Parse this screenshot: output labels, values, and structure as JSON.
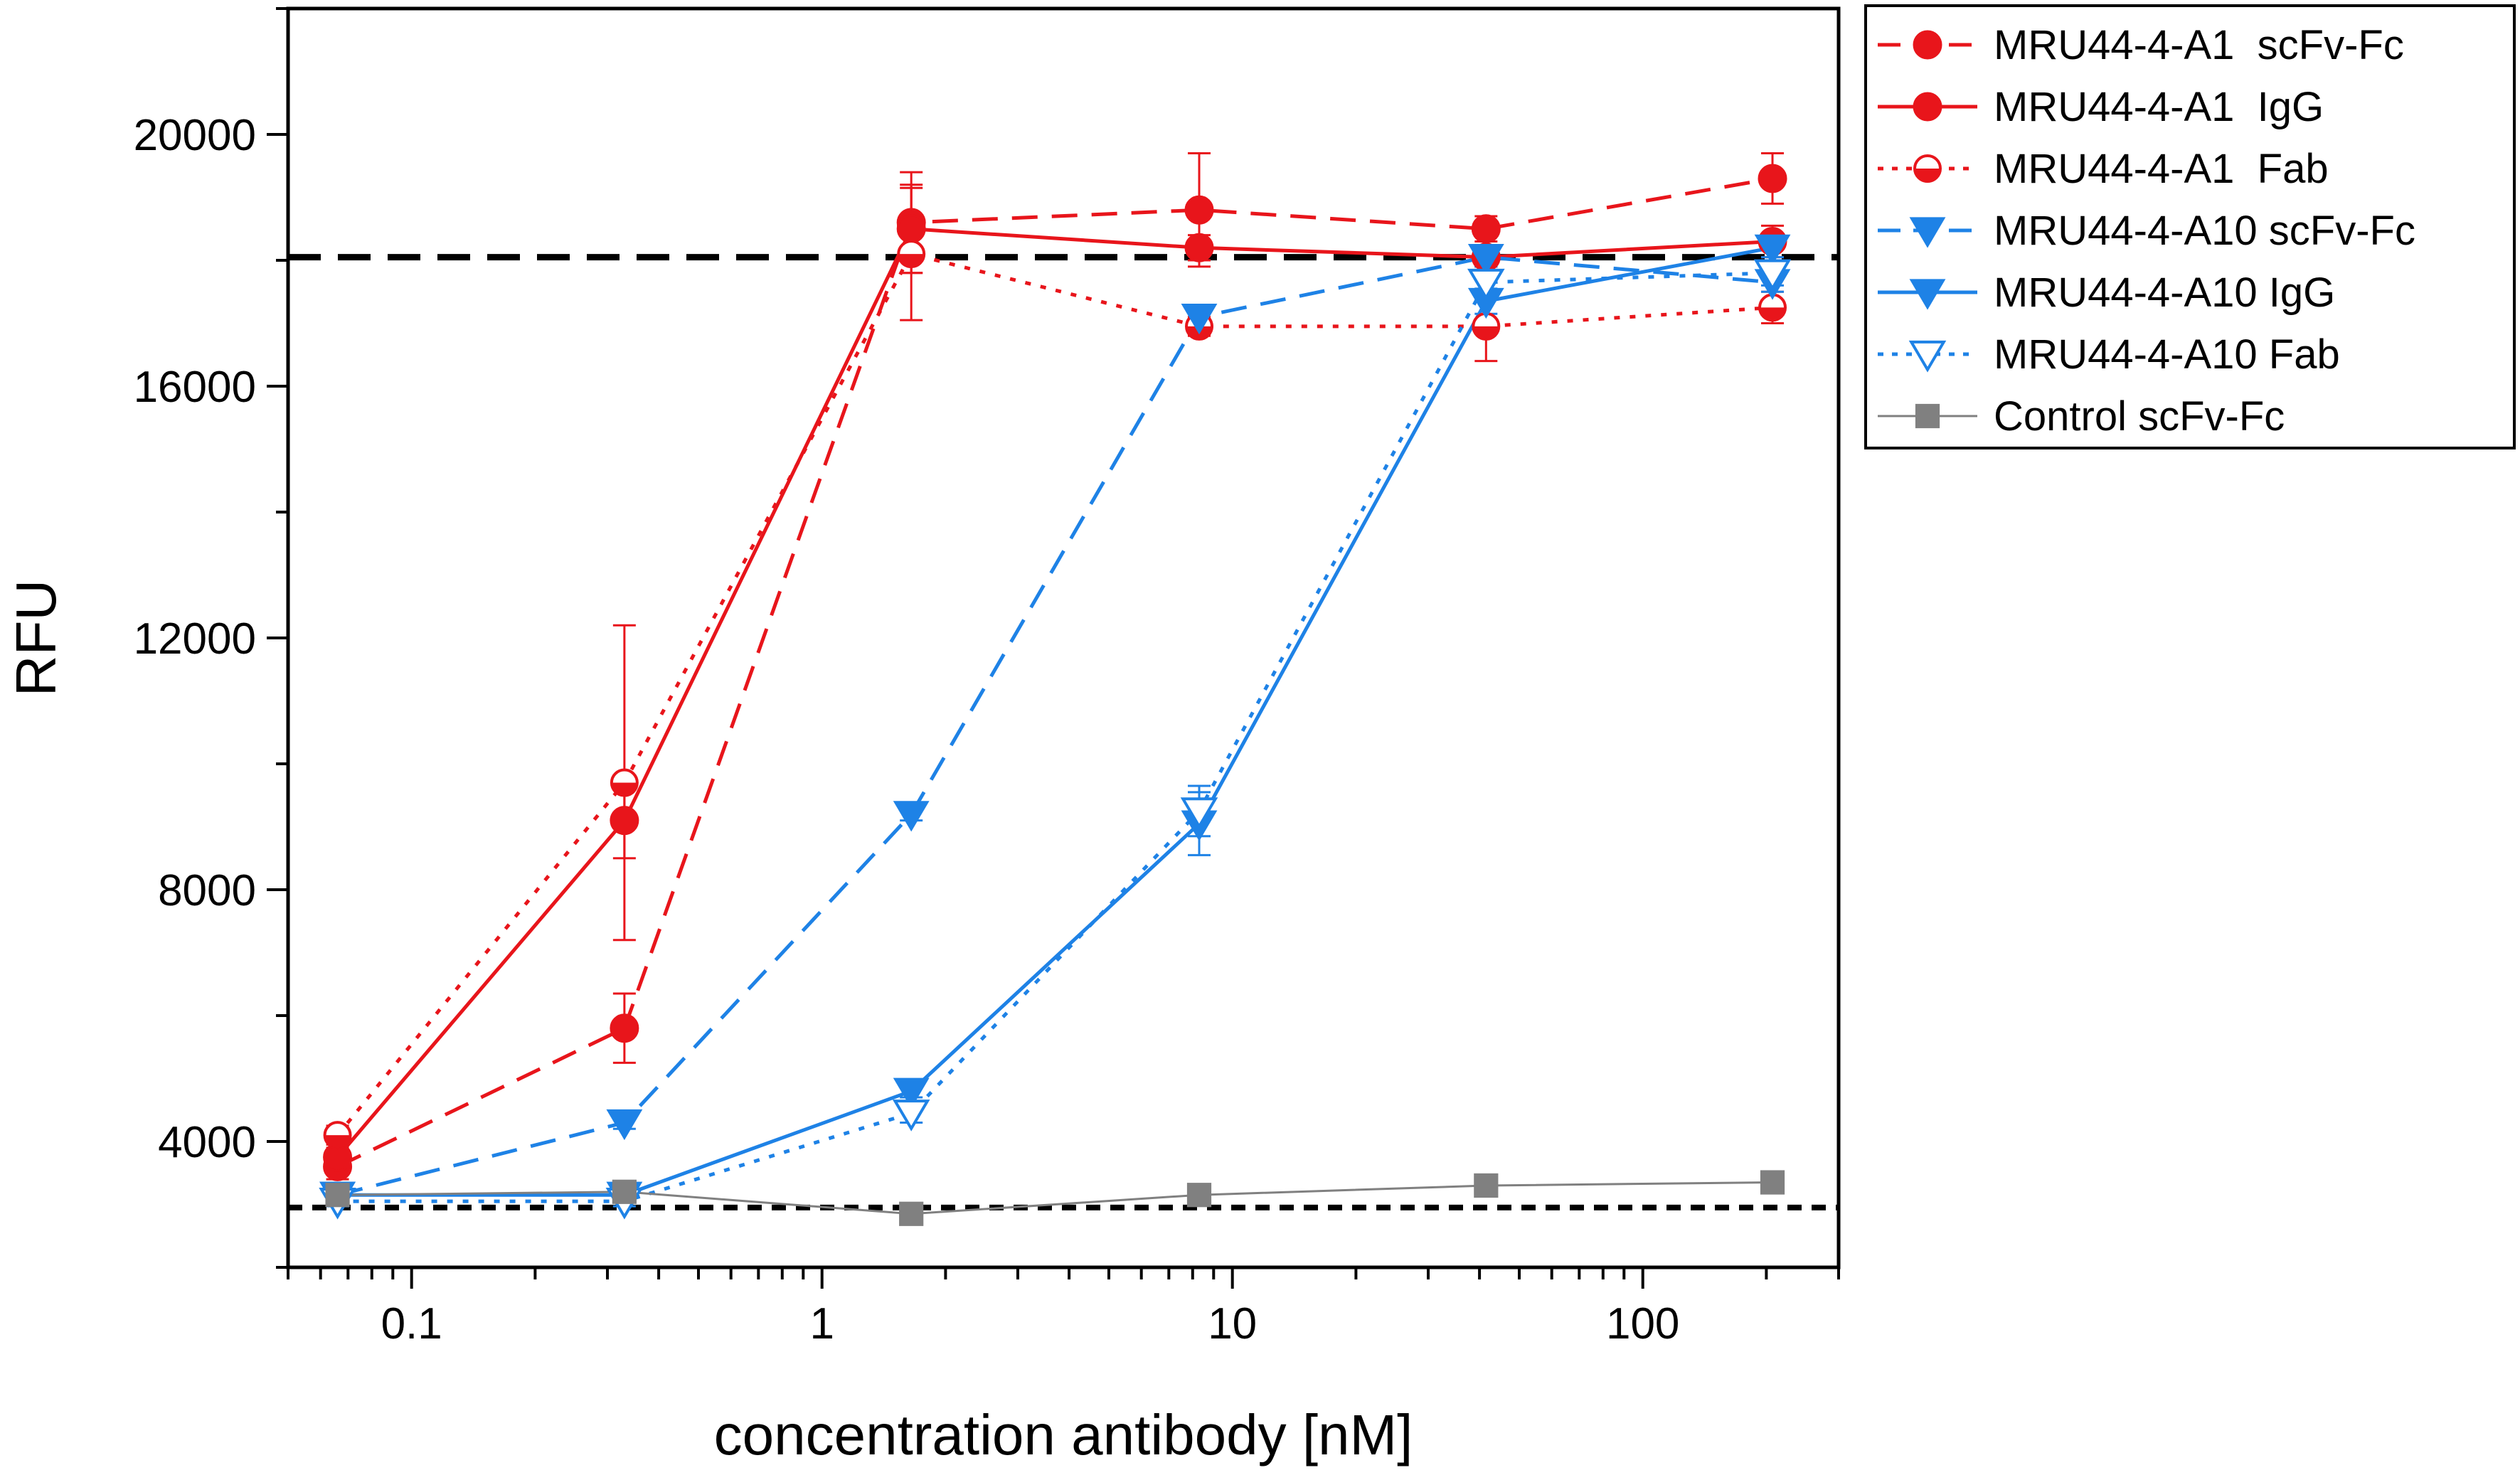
{
  "chart_data": {
    "type": "line",
    "title": "",
    "xlabel": "concentration antibody [nM]",
    "ylabel": "RFU",
    "xscale": "log",
    "xlim": [
      0.05,
      300
    ],
    "ylim": [
      2000,
      22000
    ],
    "x_ticks": [
      0.1,
      1,
      10,
      100
    ],
    "x_tick_labels": [
      "0.1",
      "1",
      "10",
      "100"
    ],
    "y_ticks": [
      4000,
      8000,
      12000,
      16000,
      20000
    ],
    "y_tick_labels": [
      "4000",
      "8000",
      "12000",
      "16000",
      "20000"
    ],
    "legend_position": "outside-top-right",
    "reference_lines": [
      {
        "name": "upper-reference",
        "y": 18050,
        "style": "dashed"
      },
      {
        "name": "lower-reference",
        "y": 2950,
        "style": "dotted"
      }
    ],
    "series": [
      {
        "name": "MRU44-4-A1  scFv-Fc",
        "color": "#e8151b",
        "line": "dashed",
        "marker": "circle-filled",
        "x": [
          0.066,
          0.33,
          1.65,
          8.3,
          41.5,
          207
        ],
        "y": [
          3600,
          5800,
          18600,
          18800,
          18500,
          19300
        ],
        "err": [
          200,
          550,
          800,
          900,
          200,
          400
        ]
      },
      {
        "name": "MRU44-4-A1  IgG",
        "color": "#e8151b",
        "line": "solid",
        "marker": "circle-filled",
        "x": [
          0.066,
          0.33,
          1.65,
          8.3,
          41.5,
          207
        ],
        "y": [
          3750,
          9100,
          18500,
          18200,
          18050,
          18300
        ],
        "err": [
          150,
          600,
          700,
          200,
          150,
          250
        ]
      },
      {
        "name": "MRU44-4-A1  Fab",
        "color": "#e8151b",
        "line": "dotted",
        "marker": "circle-half",
        "x": [
          0.066,
          0.33,
          1.65,
          8.3,
          41.5,
          207
        ],
        "y": [
          4100,
          9700,
          18100,
          16950,
          16950,
          17250
        ],
        "err": [
          150,
          2500,
          1050,
          150,
          550,
          250
        ]
      },
      {
        "name": "MRU44-4-A10 scFv-Fc",
        "color": "#1e82e6",
        "line": "dashed",
        "marker": "triangle-down-filled",
        "x": [
          0.066,
          0.33,
          1.65,
          8.3,
          41.5,
          207
        ],
        "y": [
          3150,
          4300,
          9200,
          17100,
          18050,
          17650
        ],
        "err": [
          100,
          100,
          100,
          150,
          150,
          150
        ]
      },
      {
        "name": "MRU44-4-A10 IgG",
        "color": "#1e82e6",
        "line": "solid",
        "marker": "triangle-down-filled",
        "x": [
          0.066,
          0.33,
          1.65,
          8.3,
          41.5,
          207
        ],
        "y": [
          3150,
          3150,
          4800,
          9050,
          17350,
          18200
        ],
        "err": [
          80,
          80,
          100,
          500,
          200,
          150
        ]
      },
      {
        "name": "MRU44-4-A10 Fab",
        "color": "#1e82e6",
        "line": "dotted",
        "marker": "triangle-down-open",
        "x": [
          0.066,
          0.33,
          1.65,
          8.3,
          41.5,
          207
        ],
        "y": [
          3050,
          3050,
          4450,
          9250,
          17650,
          17800
        ],
        "err": [
          80,
          80,
          150,
          400,
          250,
          200
        ]
      },
      {
        "name": "Control scFv-Fc",
        "color": "#808080",
        "line": "solid-thin",
        "marker": "square-filled",
        "x": [
          0.066,
          0.33,
          1.65,
          8.3,
          41.5,
          207
        ],
        "y": [
          3150,
          3200,
          2850,
          3150,
          3300,
          3350
        ],
        "err": [
          0,
          0,
          0,
          0,
          0,
          0
        ]
      }
    ]
  }
}
